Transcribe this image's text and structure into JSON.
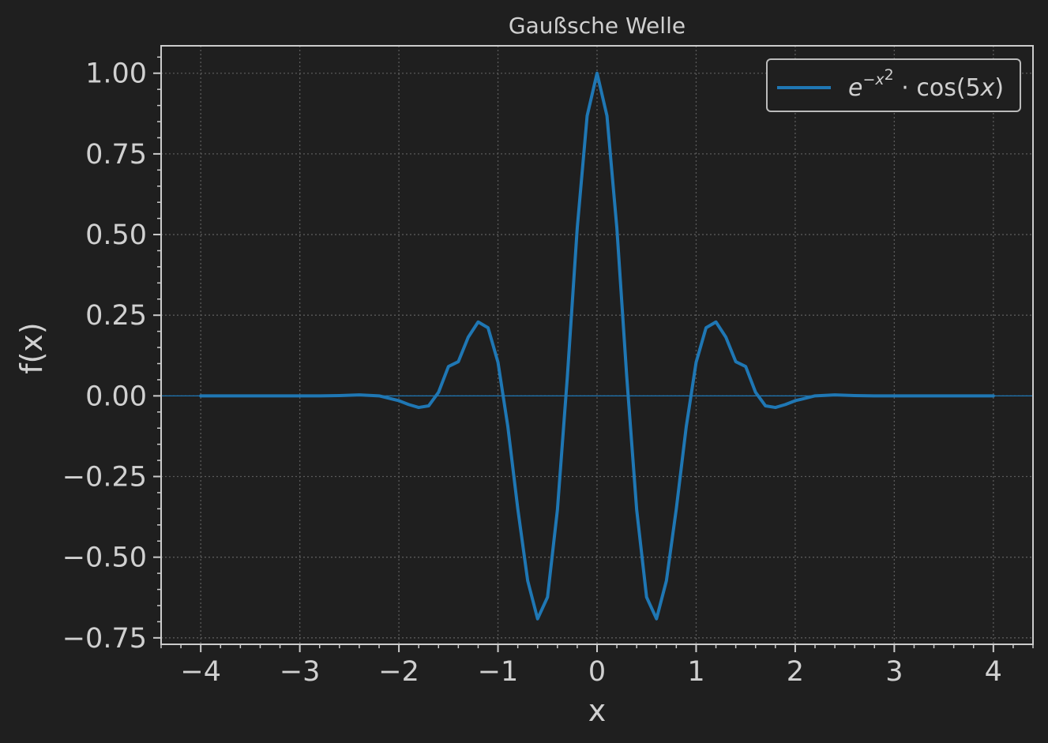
{
  "chart_data": {
    "type": "line",
    "title": "Gaußsche Welle",
    "xlabel": "x",
    "ylabel": "f(x)",
    "xlim": [
      -4.4,
      4.4
    ],
    "ylim": [
      -0.77,
      1.085
    ],
    "xticks": [
      -4,
      -3,
      -2,
      -1,
      0,
      1,
      2,
      3,
      4
    ],
    "xtick_labels": [
      "−4",
      "−3",
      "−2",
      "−1",
      "0",
      "1",
      "2",
      "3",
      "4"
    ],
    "yticks": [
      -0.75,
      -0.5,
      -0.25,
      0.0,
      0.25,
      0.5,
      0.75,
      1.0
    ],
    "ytick_labels": [
      "−0.75",
      "−0.50",
      "−0.25",
      "0.00",
      "0.25",
      "0.50",
      "0.75",
      "1.00"
    ],
    "grid": true,
    "legend_position": "top-right",
    "reference_line_y": 0,
    "series": [
      {
        "name": "e^{−x²} · cos(5x)",
        "legend": {
          "base": "e",
          "exponent": "−x",
          "exponent_power": "2",
          "rest": " · cos(5",
          "var": "x",
          "close": ")"
        },
        "color": "#1f77b4",
        "x": [
          -4.0,
          -3.8,
          -3.6,
          -3.4,
          -3.2,
          -3.0,
          -2.8,
          -2.6,
          -2.4,
          -2.2,
          -2.0,
          -1.9,
          -1.8,
          -1.7,
          -1.6,
          -1.5,
          -1.4,
          -1.3,
          -1.2,
          -1.1,
          -1.0,
          -0.9,
          -0.8,
          -0.7,
          -0.6,
          -0.5,
          -0.4,
          -0.3,
          -0.2,
          -0.1,
          0.0,
          0.1,
          0.2,
          0.3,
          0.4,
          0.5,
          0.6,
          0.7,
          0.8,
          0.9,
          1.0,
          1.1,
          1.2,
          1.3,
          1.4,
          1.5,
          1.6,
          1.7,
          1.8,
          1.9,
          2.0,
          2.2,
          2.4,
          2.6,
          2.8,
          3.0,
          3.2,
          3.4,
          3.6,
          3.8,
          4.0
        ],
        "y": [
          0.0,
          0.0,
          0.0,
          0.0,
          0.0,
          0.0,
          0.0,
          0.001,
          0.003,
          0.0,
          -0.015,
          -0.027,
          -0.036,
          -0.031,
          0.011,
          0.091,
          0.106,
          0.182,
          0.229,
          0.211,
          0.104,
          -0.096,
          -0.35,
          -0.573,
          -0.691,
          -0.624,
          -0.353,
          0.058,
          0.52,
          0.868,
          1.0,
          0.868,
          0.52,
          0.058,
          -0.353,
          -0.624,
          -0.691,
          -0.573,
          -0.35,
          -0.096,
          0.104,
          0.211,
          0.229,
          0.182,
          0.106,
          0.091,
          0.011,
          -0.031,
          -0.036,
          -0.027,
          -0.015,
          0.0,
          0.003,
          0.001,
          0.0,
          0.0,
          0.0,
          0.0,
          0.0,
          0.0,
          0.0
        ]
      }
    ]
  }
}
